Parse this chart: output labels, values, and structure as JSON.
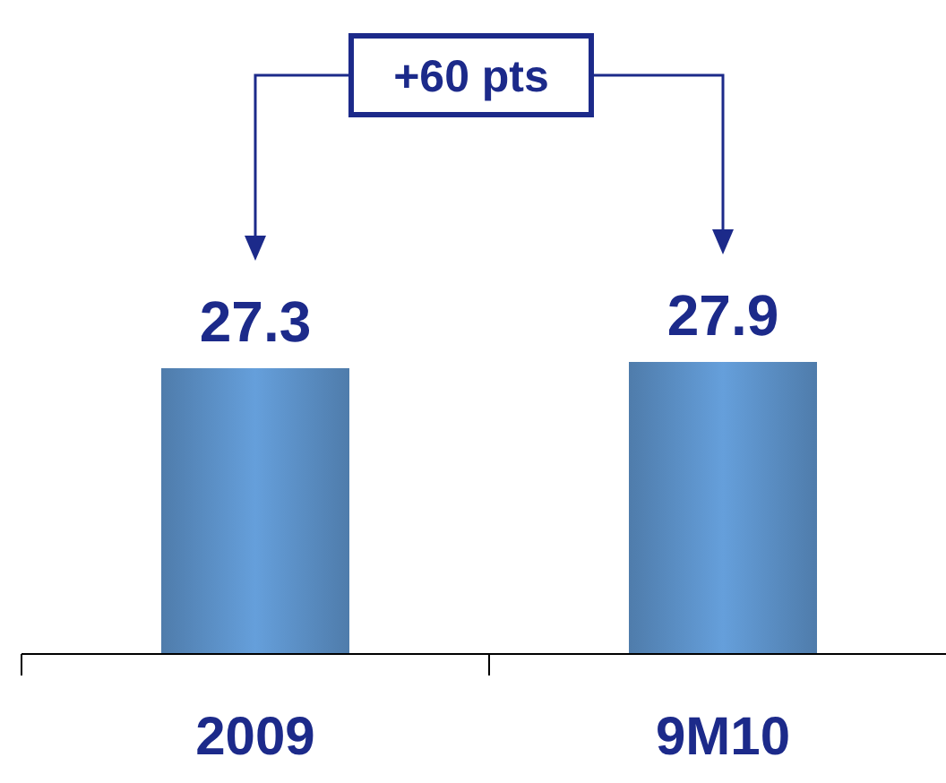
{
  "chart_data": {
    "type": "bar",
    "categories": [
      "2009",
      "9M10"
    ],
    "values": [
      27.3,
      27.9
    ],
    "color": "#4f7cab",
    "data_labels": true,
    "annotations": [
      "+60 pts"
    ]
  }
}
